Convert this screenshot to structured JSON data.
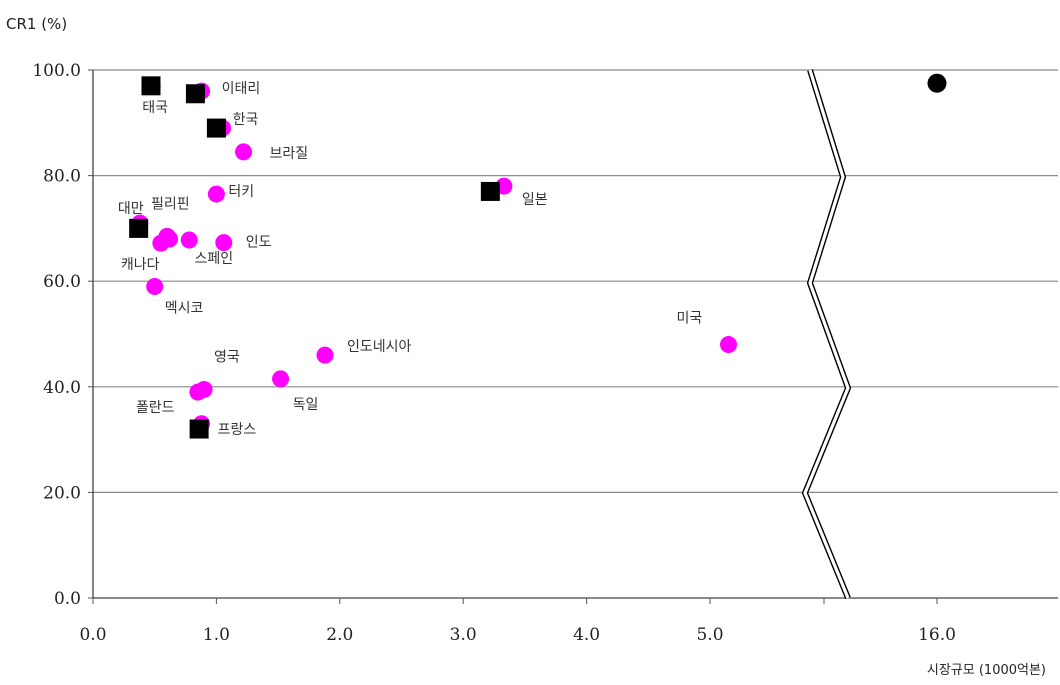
{
  "chart_data": {
    "type": "scatter",
    "title": "",
    "ylabel": "CR1 (%)",
    "xlabel": "시장규모 (1000억본)",
    "ylim": [
      0,
      100
    ],
    "y_ticks": [
      "0.0",
      "20.0",
      "40.0",
      "60.0",
      "80.0",
      "100.0"
    ],
    "x_ticks": [
      "0.0",
      "1.0",
      "2.0",
      "3.0",
      "4.0",
      "5.0",
      "16.0"
    ],
    "axis_break": true,
    "grid": "horizontal",
    "series": [
      {
        "marker": "circle",
        "color": "#ff00ff",
        "points": [
          {
            "label": "이태리",
            "x": 0.88,
            "y": 96
          },
          {
            "label": "태국",
            "x": 0.48,
            "y": 97
          },
          {
            "label": "한국",
            "x": 1.05,
            "y": 89
          },
          {
            "label": "브라질",
            "x": 1.22,
            "y": 84.5
          },
          {
            "label": "터키",
            "x": 1.0,
            "y": 76.5
          },
          {
            "label": "대만",
            "x": 0.38,
            "y": 71
          },
          {
            "label": "필리핀",
            "x": 0.6,
            "y": 68.5
          },
          {
            "label": "",
            "x": 0.78,
            "y": 67.8
          },
          {
            "label": "인도",
            "x": 1.06,
            "y": 67.3
          },
          {
            "label": "캐나다",
            "x": 0.55,
            "y": 67.2
          },
          {
            "label": "스페인",
            "x": 0.62,
            "y": 68
          },
          {
            "label": "멕시코",
            "x": 0.5,
            "y": 59
          },
          {
            "label": "일본",
            "x": 3.33,
            "y": 78
          },
          {
            "label": "미국",
            "x": 5.15,
            "y": 48
          },
          {
            "label": "인도네시아",
            "x": 1.88,
            "y": 46
          },
          {
            "label": "영국",
            "x": 0.9,
            "y": 39.5
          },
          {
            "label": "폴란드",
            "x": 0.85,
            "y": 39
          },
          {
            "label": "독일",
            "x": 1.52,
            "y": 41.5
          },
          {
            "label": "프랑스",
            "x": 0.88,
            "y": 33
          }
        ]
      },
      {
        "marker": "square",
        "color": "#000000",
        "points": [
          {
            "x": 0.47,
            "y": 97
          },
          {
            "x": 0.83,
            "y": 95.5
          },
          {
            "x": 1.0,
            "y": 89
          },
          {
            "x": 3.22,
            "y": 77
          },
          {
            "x": 0.37,
            "y": 70
          },
          {
            "x": 0.86,
            "y": 32
          }
        ]
      },
      {
        "marker": "circle",
        "color": "#000000",
        "points": [
          {
            "x": 16.0,
            "y": 97.5
          }
        ]
      }
    ]
  }
}
